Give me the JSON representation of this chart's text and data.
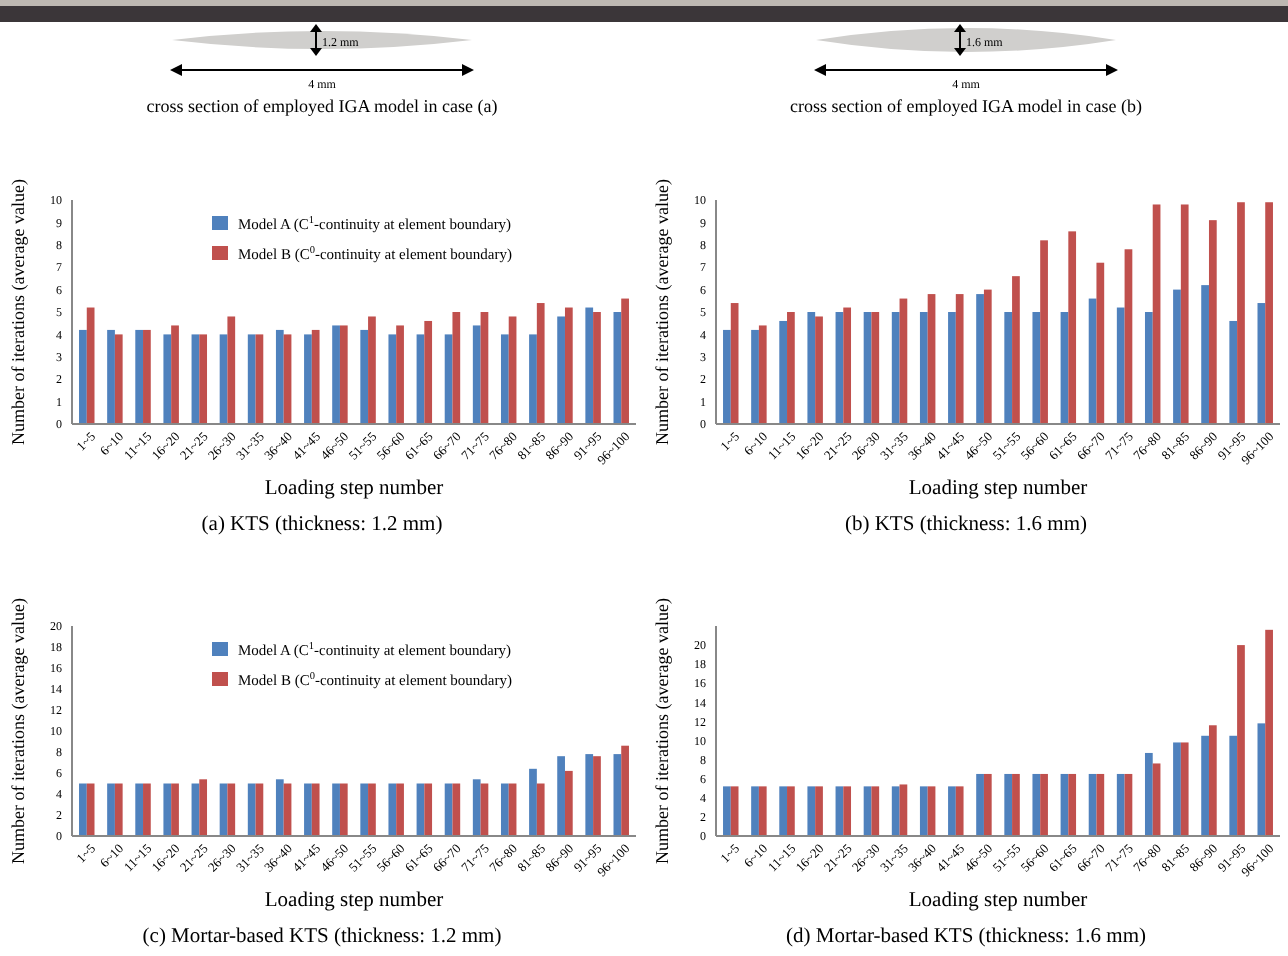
{
  "chart_data": [
    {
      "type": "bar",
      "title": "(a)  KTS (thickness: 1.2 mm)",
      "xlabel": "Loading step number",
      "ylabel": "Number of iterations (average value)",
      "annotations": [
        "1.2 mm",
        "4 mm",
        "cross section of employed IGA model in case (a)"
      ],
      "categories": [
        "1~5",
        "6~10",
        "11~15",
        "16~20",
        "21~25",
        "26~30",
        "31~35",
        "36~40",
        "41~45",
        "46~50",
        "51~55",
        "56~60",
        "61~65",
        "66~70",
        "71~75",
        "76~80",
        "81~85",
        "86~90",
        "91~95",
        "96~100"
      ],
      "series": [
        {
          "name": "Model A (C$^{1}$-continuity at element boundary)",
          "color": "#4f81bd",
          "values": [
            4.2,
            4.2,
            4.2,
            4.0,
            4.0,
            4.0,
            4.0,
            4.2,
            4.0,
            4.4,
            4.2,
            4.0,
            4.0,
            4.0,
            4.4,
            4.0,
            4.0,
            4.8,
            5.2,
            5.0
          ]
        },
        {
          "name": "Model B (C$^{0}$-continuity at element boundary)",
          "color": "#c0504d",
          "values": [
            5.2,
            4.0,
            4.2,
            4.4,
            4.0,
            4.8,
            4.0,
            4.0,
            4.2,
            4.4,
            4.8,
            4.4,
            4.6,
            5.0,
            5.0,
            4.8,
            5.4,
            5.2,
            5.0,
            5.6
          ]
        }
      ],
      "ylim": [
        0,
        10
      ],
      "yticks": [
        0,
        1,
        2,
        3,
        4,
        5,
        6,
        7,
        8,
        9,
        10
      ],
      "legend": "top left",
      "grid": false
    },
    {
      "type": "bar",
      "title": "(b)  KTS (thickness: 1.6 mm)",
      "xlabel": "Loading step number",
      "ylabel": "Number of iterations (average value)",
      "annotations": [
        "1.6 mm",
        "4 mm",
        "cross section of employed IGA model  in case (b)"
      ],
      "categories": [
        "1~5",
        "6~10",
        "11~15",
        "16~20",
        "21~25",
        "26~30",
        "31~35",
        "36~40",
        "41~45",
        "46~50",
        "51~55",
        "56~60",
        "61~65",
        "66~70",
        "71~75",
        "76~80",
        "81~85",
        "86~90",
        "91~95",
        "96~100"
      ],
      "series": [
        {
          "color": "#4f81bd",
          "values": [
            4.2,
            4.2,
            4.6,
            5.0,
            5.0,
            5.0,
            5.0,
            5.0,
            5.0,
            5.8,
            5.0,
            5.0,
            5.0,
            5.6,
            5.2,
            5.0,
            6.0,
            6.2,
            4.6,
            5.4
          ]
        },
        {
          "color": "#c0504d",
          "values": [
            5.4,
            4.4,
            5.0,
            4.8,
            5.2,
            5.0,
            5.6,
            5.8,
            5.8,
            6.0,
            6.6,
            8.2,
            8.6,
            7.2,
            7.8,
            9.8,
            9.8,
            9.1,
            9.9,
            9.9
          ]
        }
      ],
      "ylim": [
        0,
        10
      ],
      "yticks": [
        0,
        1,
        2,
        3,
        4,
        5,
        6,
        7,
        8,
        9,
        10
      ],
      "legend": false,
      "grid": false
    },
    {
      "type": "bar",
      "title": "(c)  Mortar-based KTS (thickness: 1.2 mm)",
      "xlabel": "Loading step number",
      "ylabel": "Number of iterations (average value)",
      "categories": [
        "1~5",
        "6~10",
        "11~15",
        "16~20",
        "21~25",
        "26~30",
        "31~35",
        "36~40",
        "41~45",
        "46~50",
        "51~55",
        "56~60",
        "61~65",
        "66~70",
        "71~75",
        "76~80",
        "81~85",
        "86~90",
        "91~95",
        "96~100"
      ],
      "series": [
        {
          "name": "Model A (C$^{1}$-continuity at element boundary)",
          "color": "#4f81bd",
          "values": [
            5,
            5,
            5,
            5,
            5,
            5,
            5,
            5.4,
            5,
            5,
            5,
            5,
            5,
            5,
            5.4,
            5,
            6.4,
            7.6,
            7.8,
            7.8
          ]
        },
        {
          "name": "Model B (C$^{0}$-continuity at element boundary)",
          "color": "#c0504d",
          "values": [
            5,
            5,
            5,
            5,
            5.4,
            5,
            5,
            5,
            5,
            5,
            5,
            5,
            5,
            5,
            5,
            5,
            5,
            6.2,
            7.6,
            8.6
          ]
        }
      ],
      "ylim": [
        0,
        20
      ],
      "yticks": [
        0,
        2,
        4,
        6,
        8,
        10,
        12,
        14,
        16,
        18,
        20
      ],
      "legend": "top left",
      "grid": false
    },
    {
      "type": "bar",
      "title": "(d)  Mortar-based KTS (thickness: 1.6 mm)",
      "xlabel": "Loading step number",
      "ylabel": "Number of iterations (average value)",
      "categories": [
        "1~5",
        "6~10",
        "11~15",
        "16~20",
        "21~25",
        "26~30",
        "31~35",
        "36~40",
        "41~45",
        "46~50",
        "51~55",
        "56~60",
        "61~65",
        "66~70",
        "71~75",
        "76~80",
        "81~85",
        "86~90",
        "91~95",
        "96~100"
      ],
      "series": [
        {
          "color": "#4f81bd",
          "values": [
            5.2,
            5.2,
            5.2,
            5.2,
            5.2,
            5.2,
            5.2,
            5.2,
            5.2,
            6.5,
            6.5,
            6.5,
            6.5,
            6.5,
            6.5,
            8.7,
            9.8,
            10.5,
            10.5,
            11.8
          ]
        },
        {
          "color": "#c0504d",
          "values": [
            5.2,
            5.2,
            5.2,
            5.2,
            5.2,
            5.2,
            5.4,
            5.2,
            5.2,
            6.5,
            6.5,
            6.5,
            6.5,
            6.5,
            6.5,
            7.6,
            9.8,
            11.6,
            20,
            21.6
          ]
        }
      ],
      "ylim": [
        0,
        22
      ],
      "yticks": [
        0,
        2,
        4,
        6,
        8,
        10,
        12,
        14,
        16,
        18,
        20
      ],
      "legend": false,
      "grid": false
    }
  ]
}
